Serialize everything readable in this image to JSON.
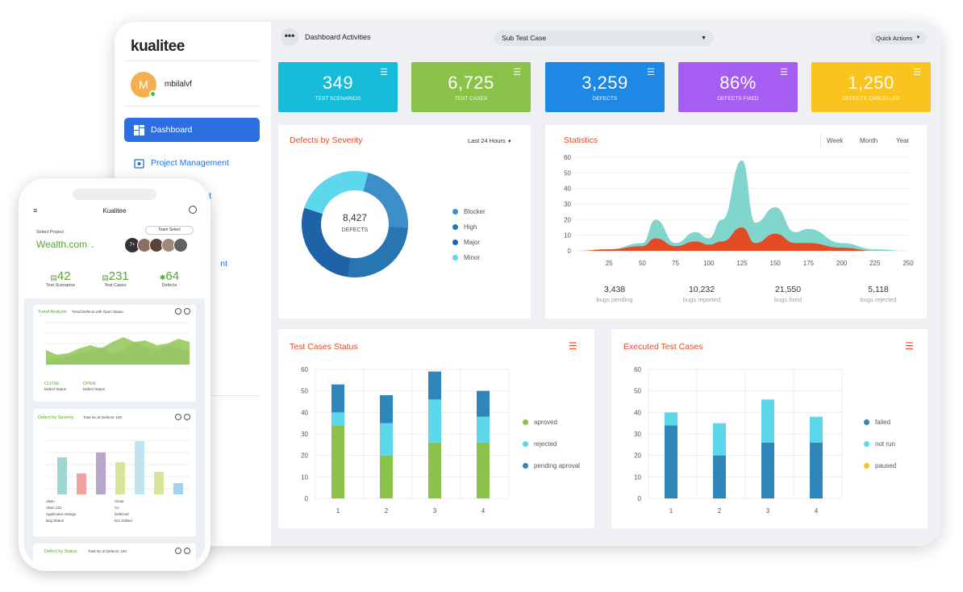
{
  "sidebar": {
    "logo": "kualitee",
    "user": {
      "initial": "M",
      "name": "mbilalvf"
    },
    "items": [
      {
        "label": "Dashboard"
      },
      {
        "label": "Project Management"
      },
      {
        "label": "t"
      },
      {
        "label": "nt"
      }
    ]
  },
  "topbar": {
    "title": "Dashboard Activities",
    "dropdown": "Sub Test Case",
    "quick_actions": "Quick Actions"
  },
  "kpis": [
    {
      "value": "349",
      "label": "Test Scenarios",
      "color": "#17bcd8"
    },
    {
      "value": "6,725",
      "label": "Test Cases",
      "color": "#8bc34a"
    },
    {
      "value": "3,259",
      "label": "Defects",
      "color": "#1e88e5"
    },
    {
      "value": "86%",
      "label": "Defects Fixed",
      "color": "#a55df2"
    },
    {
      "value": "1,250",
      "label": "Defects Cancelled",
      "color": "#fbc31d"
    }
  ],
  "severity": {
    "title": "Defects by Severity",
    "period": "Last 24 Hours",
    "center_value": "8,427",
    "center_label": "DEFECTS",
    "legend": [
      {
        "name": "Blocker",
        "color": "#3c8fc7"
      },
      {
        "name": "High",
        "color": "#2776b2"
      },
      {
        "name": "Major",
        "color": "#1e63a8"
      },
      {
        "name": "Minor",
        "color": "#5dd7ec"
      }
    ]
  },
  "statistics": {
    "title": "Statistics",
    "tabs": [
      "Week",
      "Month",
      "Year"
    ],
    "yticks": [
      "60",
      "50",
      "40",
      "30",
      "20",
      "10",
      "0"
    ],
    "xticks": [
      "25",
      "50",
      "75",
      "100",
      "125",
      "150",
      "175",
      "200",
      "225",
      "250"
    ],
    "stats": [
      {
        "num": "3,438",
        "label": "bugs pending"
      },
      {
        "num": "10,232",
        "label": "bugs reported"
      },
      {
        "num": "21,550",
        "label": "bugs fixed"
      },
      {
        "num": "5,118",
        "label": "bugs rejected"
      }
    ]
  },
  "test_cases_status": {
    "title": "Test Cases Status",
    "yticks": [
      "60",
      "50",
      "40",
      "30",
      "20",
      "10",
      "0"
    ],
    "xticks": [
      "1",
      "2",
      "3",
      "4"
    ],
    "legend": [
      {
        "name": "aproved",
        "color": "#8bc34a"
      },
      {
        "name": "rejected",
        "color": "#5dd7ec"
      },
      {
        "name": "pending aproval",
        "color": "#2f86b8"
      }
    ]
  },
  "executed": {
    "title": "Executed Test Cases",
    "yticks": [
      "60",
      "50",
      "40",
      "30",
      "20",
      "10",
      "0"
    ],
    "xticks": [
      "1",
      "2",
      "3",
      "4"
    ],
    "legend": [
      {
        "name": "failed",
        "color": "#2f86b8"
      },
      {
        "name": "not run",
        "color": "#5dd7ec"
      },
      {
        "name": "paused",
        "color": "#fbc31d"
      }
    ]
  },
  "phone": {
    "title": "Kualitee",
    "select_project": "Select Project",
    "team_select": "Team Select",
    "project": "Wealth.com",
    "team_more": "7+",
    "metrics": [
      {
        "value": "42",
        "label": "Test Scenarios"
      },
      {
        "value": "231",
        "label": "Test Cases"
      },
      {
        "value": "64",
        "label": "Defects"
      }
    ],
    "trend_title": "Trend Analysis",
    "trend_sub": "Trend Defects with Open Status",
    "close_label": "CLOSE",
    "close_sub": "Defect Status",
    "open_label": "OPEN",
    "open_sub": "Defect Status",
    "severity_title": "Defect by Severity",
    "severity_sub": "Total No of Defects: 190",
    "severity_legend": [
      "Alwin",
      "Close",
      "Alwin 222",
      "Cs",
      "Application Design",
      "Deferred",
      "Bug Status",
      "Eric Edited"
    ],
    "status_title": "Defect by Status",
    "status_sub": "Total No of Defects: 190"
  },
  "chart_data": [
    {
      "type": "pie",
      "title": "Defects by Severity",
      "categories": [
        "Blocker",
        "High",
        "Major",
        "Minor"
      ],
      "values": [
        22,
        26,
        28,
        24
      ]
    },
    {
      "type": "area",
      "title": "Statistics",
      "x": [
        0,
        25,
        50,
        60,
        75,
        90,
        100,
        110,
        125,
        135,
        150,
        165,
        175,
        200,
        225,
        250
      ],
      "series": [
        {
          "values": [
            0,
            1,
            5,
            20,
            5,
            12,
            8,
            20,
            58,
            18,
            28,
            12,
            14,
            5,
            1,
            0
          ]
        },
        {
          "values": [
            0,
            1,
            3,
            8,
            3,
            6,
            4,
            6,
            15,
            5,
            11,
            5,
            5,
            2,
            0,
            0
          ]
        }
      ],
      "ylim": [
        0,
        60
      ],
      "xlim": [
        0,
        250
      ]
    },
    {
      "type": "bar",
      "title": "Test Cases Status",
      "categories": [
        "1",
        "2",
        "3",
        "4"
      ],
      "series": [
        {
          "name": "aproved",
          "values": [
            34,
            20,
            26,
            26
          ]
        },
        {
          "name": "rejected",
          "values": [
            6,
            15,
            20,
            12
          ]
        },
        {
          "name": "pending aproval",
          "values": [
            13,
            13,
            13,
            12
          ]
        }
      ],
      "ylim": [
        0,
        60
      ]
    },
    {
      "type": "bar",
      "title": "Executed Test Cases",
      "categories": [
        "1",
        "2",
        "3",
        "4"
      ],
      "series": [
        {
          "name": "failed",
          "values": [
            34,
            20,
            26,
            26
          ]
        },
        {
          "name": "not run",
          "values": [
            6,
            15,
            20,
            12
          ]
        },
        {
          "name": "paused",
          "values": [
            0,
            0,
            0,
            0
          ]
        }
      ],
      "ylim": [
        0,
        60
      ]
    }
  ]
}
